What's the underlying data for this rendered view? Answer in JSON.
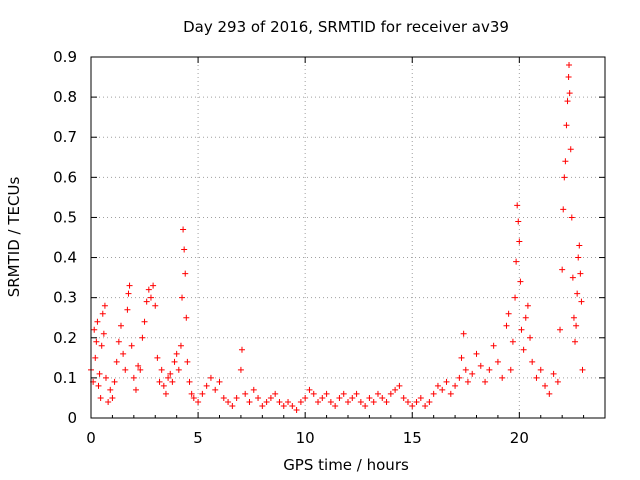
{
  "chart_data": {
    "type": "scatter",
    "title": "Day 293 of 2016, SRMTID for receiver av39",
    "xlabel": "GPS time / hours",
    "ylabel": "SRMTID / TECUs",
    "xlim": [
      0,
      24
    ],
    "ylim": [
      0,
      0.9
    ],
    "xticks": [
      0,
      5,
      10,
      15,
      20
    ],
    "yticks": [
      0,
      0.1,
      0.2,
      0.3,
      0.4,
      0.5,
      0.6,
      0.7,
      0.8,
      0.9
    ],
    "ytick_labels": [
      "0",
      "0.1",
      "0.2",
      "0.3",
      "0.4",
      "0.5",
      "0.6",
      "0.7",
      "0.8",
      "0.9"
    ],
    "grid": true,
    "marker": "plus",
    "color": "#ff0000",
    "series": [
      {
        "name": "SRMTID",
        "points": [
          [
            0.0,
            0.12
          ],
          [
            0.1,
            0.09
          ],
          [
            0.15,
            0.22
          ],
          [
            0.2,
            0.15
          ],
          [
            0.25,
            0.19
          ],
          [
            0.3,
            0.24
          ],
          [
            0.35,
            0.08
          ],
          [
            0.4,
            0.11
          ],
          [
            0.45,
            0.05
          ],
          [
            0.5,
            0.18
          ],
          [
            0.55,
            0.26
          ],
          [
            0.6,
            0.21
          ],
          [
            0.65,
            0.28
          ],
          [
            0.7,
            0.1
          ],
          [
            0.8,
            0.04
          ],
          [
            0.9,
            0.07
          ],
          [
            1.0,
            0.05
          ],
          [
            1.1,
            0.09
          ],
          [
            1.2,
            0.14
          ],
          [
            1.3,
            0.19
          ],
          [
            1.4,
            0.23
          ],
          [
            1.5,
            0.16
          ],
          [
            1.6,
            0.12
          ],
          [
            1.7,
            0.27
          ],
          [
            1.75,
            0.31
          ],
          [
            1.8,
            0.33
          ],
          [
            1.9,
            0.18
          ],
          [
            2.0,
            0.1
          ],
          [
            2.1,
            0.07
          ],
          [
            2.2,
            0.13
          ],
          [
            2.3,
            0.12
          ],
          [
            2.4,
            0.2
          ],
          [
            2.5,
            0.24
          ],
          [
            2.6,
            0.29
          ],
          [
            2.7,
            0.32
          ],
          [
            2.8,
            0.3
          ],
          [
            2.9,
            0.33
          ],
          [
            3.0,
            0.28
          ],
          [
            3.1,
            0.15
          ],
          [
            3.2,
            0.09
          ],
          [
            3.3,
            0.12
          ],
          [
            3.4,
            0.08
          ],
          [
            3.5,
            0.06
          ],
          [
            3.6,
            0.1
          ],
          [
            3.7,
            0.11
          ],
          [
            3.8,
            0.09
          ],
          [
            3.9,
            0.14
          ],
          [
            4.0,
            0.16
          ],
          [
            4.1,
            0.12
          ],
          [
            4.2,
            0.18
          ],
          [
            4.25,
            0.3
          ],
          [
            4.3,
            0.47
          ],
          [
            4.35,
            0.42
          ],
          [
            4.4,
            0.36
          ],
          [
            4.45,
            0.25
          ],
          [
            4.5,
            0.14
          ],
          [
            4.6,
            0.09
          ],
          [
            4.7,
            0.06
          ],
          [
            4.8,
            0.05
          ],
          [
            5.0,
            0.04
          ],
          [
            5.2,
            0.06
          ],
          [
            5.4,
            0.08
          ],
          [
            5.6,
            0.1
          ],
          [
            5.8,
            0.07
          ],
          [
            6.0,
            0.09
          ],
          [
            6.2,
            0.05
          ],
          [
            6.4,
            0.04
          ],
          [
            6.6,
            0.03
          ],
          [
            6.8,
            0.05
          ],
          [
            7.0,
            0.12
          ],
          [
            7.05,
            0.17
          ],
          [
            7.2,
            0.06
          ],
          [
            7.4,
            0.04
          ],
          [
            7.6,
            0.07
          ],
          [
            7.8,
            0.05
          ],
          [
            8.0,
            0.03
          ],
          [
            8.2,
            0.04
          ],
          [
            8.4,
            0.05
          ],
          [
            8.6,
            0.06
          ],
          [
            8.8,
            0.04
          ],
          [
            9.0,
            0.03
          ],
          [
            9.2,
            0.04
          ],
          [
            9.4,
            0.03
          ],
          [
            9.6,
            0.02
          ],
          [
            9.8,
            0.04
          ],
          [
            10.0,
            0.05
          ],
          [
            10.2,
            0.07
          ],
          [
            10.4,
            0.06
          ],
          [
            10.6,
            0.04
          ],
          [
            10.8,
            0.05
          ],
          [
            11.0,
            0.06
          ],
          [
            11.2,
            0.04
          ],
          [
            11.4,
            0.03
          ],
          [
            11.6,
            0.05
          ],
          [
            11.8,
            0.06
          ],
          [
            12.0,
            0.04
          ],
          [
            12.2,
            0.05
          ],
          [
            12.4,
            0.06
          ],
          [
            12.6,
            0.04
          ],
          [
            12.8,
            0.03
          ],
          [
            13.0,
            0.05
          ],
          [
            13.2,
            0.04
          ],
          [
            13.4,
            0.06
          ],
          [
            13.6,
            0.05
          ],
          [
            13.8,
            0.04
          ],
          [
            14.0,
            0.06
          ],
          [
            14.2,
            0.07
          ],
          [
            14.4,
            0.08
          ],
          [
            14.6,
            0.05
          ],
          [
            14.8,
            0.04
          ],
          [
            15.0,
            0.03
          ],
          [
            15.2,
            0.04
          ],
          [
            15.4,
            0.05
          ],
          [
            15.6,
            0.03
          ],
          [
            15.8,
            0.04
          ],
          [
            16.0,
            0.06
          ],
          [
            16.2,
            0.08
          ],
          [
            16.4,
            0.07
          ],
          [
            16.6,
            0.09
          ],
          [
            16.8,
            0.06
          ],
          [
            17.0,
            0.08
          ],
          [
            17.2,
            0.1
          ],
          [
            17.3,
            0.15
          ],
          [
            17.4,
            0.21
          ],
          [
            17.5,
            0.12
          ],
          [
            17.6,
            0.09
          ],
          [
            17.8,
            0.11
          ],
          [
            18.0,
            0.16
          ],
          [
            18.2,
            0.13
          ],
          [
            18.4,
            0.09
          ],
          [
            18.6,
            0.12
          ],
          [
            18.8,
            0.18
          ],
          [
            19.0,
            0.14
          ],
          [
            19.2,
            0.1
          ],
          [
            19.4,
            0.23
          ],
          [
            19.5,
            0.26
          ],
          [
            19.6,
            0.12
          ],
          [
            19.7,
            0.19
          ],
          [
            19.8,
            0.3
          ],
          [
            19.85,
            0.39
          ],
          [
            19.9,
            0.53
          ],
          [
            19.95,
            0.49
          ],
          [
            20.0,
            0.44
          ],
          [
            20.05,
            0.34
          ],
          [
            20.1,
            0.22
          ],
          [
            20.2,
            0.17
          ],
          [
            20.3,
            0.25
          ],
          [
            20.4,
            0.28
          ],
          [
            20.5,
            0.2
          ],
          [
            20.6,
            0.14
          ],
          [
            20.8,
            0.1
          ],
          [
            21.0,
            0.12
          ],
          [
            21.2,
            0.08
          ],
          [
            21.4,
            0.06
          ],
          [
            21.6,
            0.11
          ],
          [
            21.8,
            0.09
          ],
          [
            21.9,
            0.22
          ],
          [
            22.0,
            0.37
          ],
          [
            22.05,
            0.52
          ],
          [
            22.1,
            0.6
          ],
          [
            22.15,
            0.64
          ],
          [
            22.2,
            0.73
          ],
          [
            22.25,
            0.79
          ],
          [
            22.3,
            0.85
          ],
          [
            22.32,
            0.88
          ],
          [
            22.35,
            0.81
          ],
          [
            22.4,
            0.67
          ],
          [
            22.45,
            0.5
          ],
          [
            22.5,
            0.35
          ],
          [
            22.55,
            0.25
          ],
          [
            22.6,
            0.19
          ],
          [
            22.65,
            0.23
          ],
          [
            22.7,
            0.31
          ],
          [
            22.75,
            0.4
          ],
          [
            22.8,
            0.43
          ],
          [
            22.85,
            0.36
          ],
          [
            22.9,
            0.29
          ],
          [
            22.95,
            0.12
          ]
        ]
      }
    ]
  }
}
